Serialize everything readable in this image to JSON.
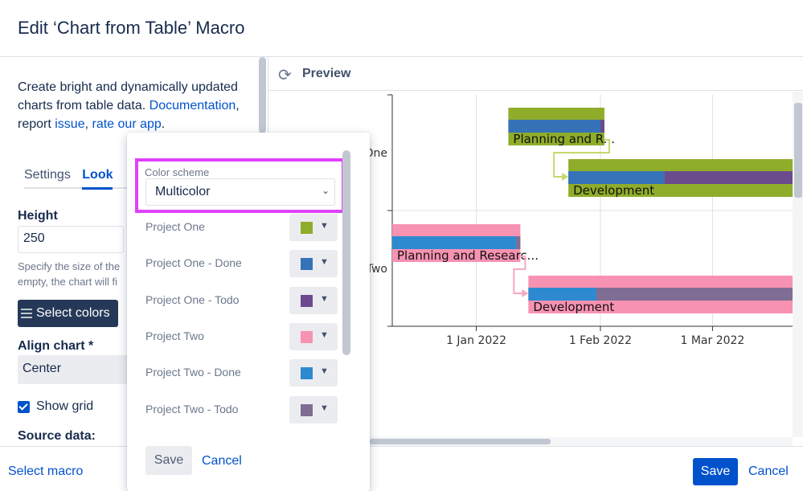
{
  "dialog": {
    "title": "Edit ‘Chart from Table’ Macro"
  },
  "sidebar": {
    "description_prefix": "Create bright and dynamically updated charts from table data.",
    "link_documentation": "Documentation",
    "text_comma_report": ", report ",
    "link_issue": "issue",
    "text_comma": ", ",
    "link_rate": "rate our app",
    "text_period": ".",
    "tabs": [
      {
        "label": "Settings"
      },
      {
        "label": "Look"
      }
    ],
    "height_label": "Height",
    "height_value": "250",
    "height_hint_1": "Specify the size of the",
    "height_hint_2": "empty, the chart will fi",
    "select_colors_label": "Select colors",
    "align_label": "Align chart *",
    "align_value": "Center",
    "show_grid_label": "Show grid",
    "source_data_label": "Source data:"
  },
  "preview": {
    "title": "Preview",
    "refresh_icon": "refresh-icon"
  },
  "color_popup": {
    "scheme_label": "Color scheme",
    "scheme_value": "Multicolor",
    "rows": [
      {
        "label": "Project One",
        "color": "#8fad2a"
      },
      {
        "label": "Project One - Done",
        "color": "#3572b8"
      },
      {
        "label": "Project One - Todo",
        "color": "#6c4a8e"
      },
      {
        "label": "Project Two",
        "color": "#f792b2"
      },
      {
        "label": "Project Two - Done",
        "color": "#2d8ad0"
      },
      {
        "label": "Project Two - Todo",
        "color": "#7f6d93"
      }
    ],
    "save_label": "Save",
    "cancel_label": "Cancel"
  },
  "footer": {
    "select_macro_label": "Select macro",
    "save_label": "Save",
    "cancel_label": "Cancel"
  },
  "chart_data": {
    "type": "bar",
    "categories": [
      "One",
      "Two"
    ],
    "x_ticks": [
      "1 Jan 2022",
      "1 Feb 2022",
      "1 Mar 2022"
    ],
    "xlim": [
      "2021-12-11",
      "2022-03-21"
    ],
    "grid": true,
    "tasks": [
      {
        "category": "One",
        "name": "Planning and R...",
        "start": "2022-01-09",
        "end": "2022-02-02",
        "done_end": "2022-02-01",
        "color": "#8fad2a",
        "done_color": "#3572b8",
        "todo_color": "#6c4a8e"
      },
      {
        "category": "One",
        "name": "Development",
        "start": "2022-01-24",
        "end": "2022-03-21",
        "done_end": "2022-02-17",
        "color": "#8fad2a",
        "done_color": "#3572b8",
        "todo_color": "#6c4a8e"
      },
      {
        "category": "Two",
        "name": "Planning and Researc...",
        "start": "2021-12-11",
        "end": "2022-01-12",
        "done_end": "2022-01-11",
        "color": "#f792b2",
        "done_color": "#2d8ad0",
        "todo_color": "#7f6d93"
      },
      {
        "category": "Two",
        "name": "Development",
        "start": "2022-01-14",
        "end": "2022-03-21",
        "done_end": "2022-01-31",
        "color": "#f792b2",
        "done_color": "#2d8ad0",
        "todo_color": "#7f6d93"
      }
    ],
    "dependencies": [
      {
        "from": 0,
        "to": 1
      },
      {
        "from": 2,
        "to": 3
      }
    ]
  }
}
